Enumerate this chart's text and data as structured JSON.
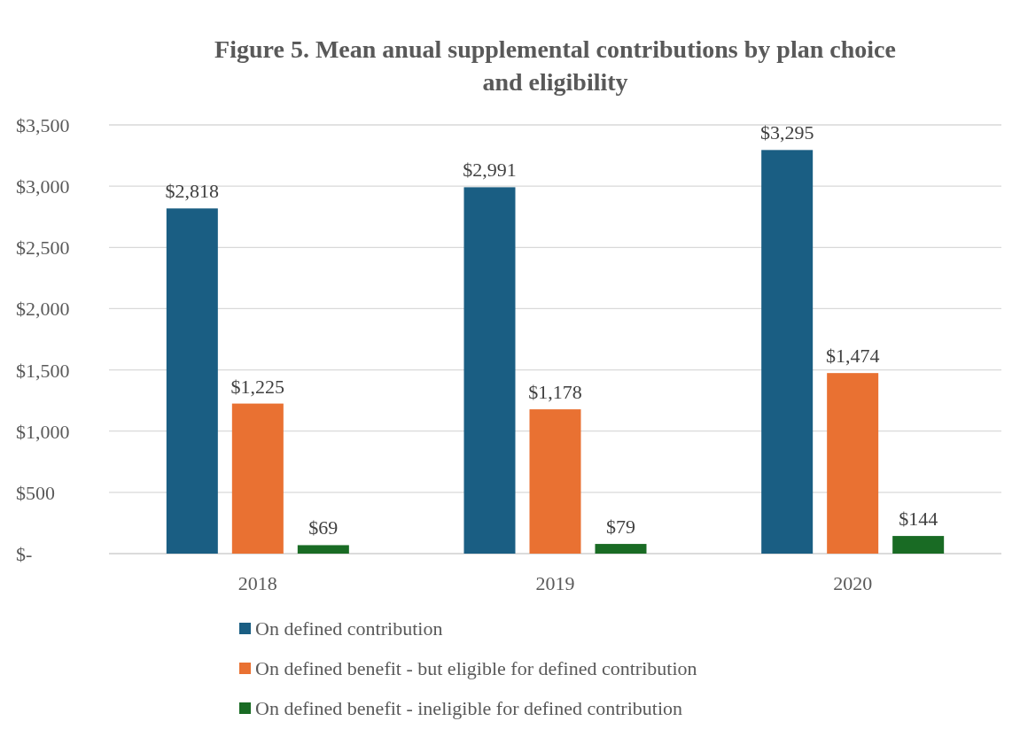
{
  "chart_data": {
    "type": "bar",
    "title": "Figure 5. Mean anual supplemental contributions by plan choice and eligibility",
    "categories": [
      "2018",
      "2019",
      "2020"
    ],
    "series": [
      {
        "name": "On defined contribution",
        "color": "#1a5e83",
        "values": [
          2818,
          2991,
          3295
        ],
        "value_labels": [
          "$2,818",
          "$2,991",
          "$3,295"
        ]
      },
      {
        "name": "On defined benefit - but eligible for defined contribution",
        "color": "#e97132",
        "values": [
          1225,
          1178,
          1474
        ],
        "value_labels": [
          "$1,225",
          "$1,178",
          "$1,474"
        ]
      },
      {
        "name": "On defined benefit - ineligible for defined contribution",
        "color": "#196b24",
        "values": [
          69,
          79,
          144
        ],
        "value_labels": [
          "$69",
          "$79",
          "$144"
        ]
      }
    ],
    "ylim": [
      0,
      3500
    ],
    "yticks": [
      {
        "value": 0,
        "label": "$-"
      },
      {
        "value": 500,
        "label": "$500"
      },
      {
        "value": 1000,
        "label": "$1,000"
      },
      {
        "value": 1500,
        "label": "$1,500"
      },
      {
        "value": 2000,
        "label": "$2,000"
      },
      {
        "value": 2500,
        "label": "$2,500"
      },
      {
        "value": 3000,
        "label": "$3,000"
      },
      {
        "value": 3500,
        "label": "$3,500"
      }
    ],
    "grid": "y",
    "legend": "bottom"
  }
}
